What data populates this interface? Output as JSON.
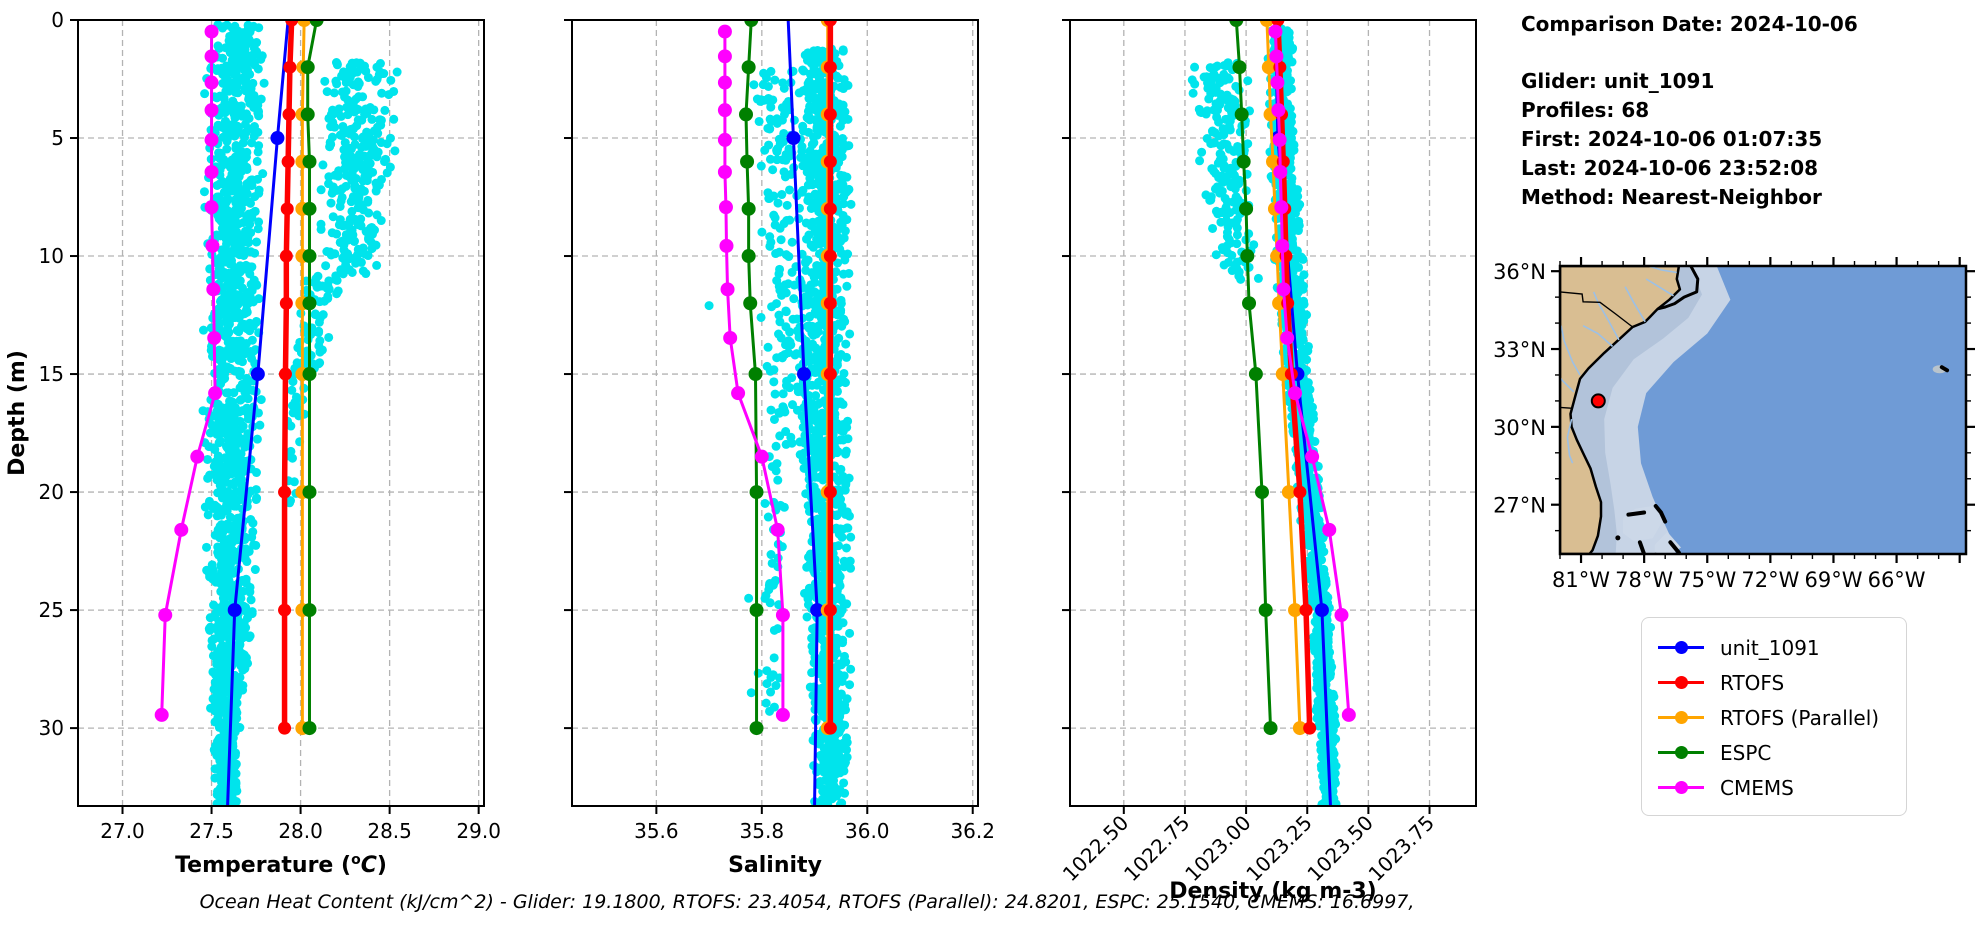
{
  "info_panel": {
    "comparison_date": "Comparison Date: 2024-10-06",
    "glider": "Glider: unit_1091",
    "profiles": "Profiles: 68",
    "first": "First: 2024-10-06 01:07:35",
    "last": "Last: 2024-10-06 23:52:08",
    "method": "Method: Nearest-Neighbor"
  },
  "footer": {
    "ocean_heat_content": "Ocean Heat Content (kJ/cm^2) - Glider: 19.1800,  RTOFS: 23.4054,  RTOFS (Parallel): 24.8201,  ESPC: 25.1540,  CMEMS: 16.6997,"
  },
  "legend": {
    "items": [
      {
        "label": "unit_1091",
        "color": "#0000ff"
      },
      {
        "label": "RTOFS",
        "color": "#ff0000"
      },
      {
        "label": "RTOFS (Parallel)",
        "color": "#ffa500"
      },
      {
        "label": "ESPC",
        "color": "#008000"
      },
      {
        "label": "CMEMS",
        "color": "#ff00ff"
      }
    ]
  },
  "chart_data": [
    {
      "type": "scatter",
      "xlabel": "Temperature (oC)",
      "xlabel_parts": [
        {
          "t": "Temperature ("
        },
        {
          "t": "o",
          "sup": true
        },
        {
          "t": "C",
          "italic": true
        },
        {
          "t": ")"
        }
      ],
      "ylabel": "Depth (m)",
      "xlim": [
        26.75,
        29.03
      ],
      "ylim": [
        0,
        33.3
      ],
      "xticks": [
        27.0,
        27.5,
        28.0,
        28.5,
        29.0
      ],
      "xtick_decimals": 1,
      "rotate_xticks": false,
      "yticks": [
        0,
        5,
        10,
        15,
        20,
        25,
        30
      ],
      "grid": true,
      "series": [
        {
          "name": "unit_1091",
          "color": "#0000ff",
          "line_width": 3,
          "marker_radius": 7,
          "depths": [
            0,
            5,
            15,
            25,
            33.3
          ],
          "values": [
            27.93,
            27.87,
            27.76,
            27.63,
            27.59
          ],
          "marker_depths": [
            5,
            15,
            25
          ]
        },
        {
          "name": "RTOFS",
          "color": "#ff0000",
          "line_width": 5.5,
          "marker_radius": 6.5,
          "depths": [
            0,
            2,
            4,
            6,
            8,
            10,
            12,
            15,
            20,
            25,
            30
          ],
          "values": [
            27.95,
            27.94,
            27.935,
            27.93,
            27.925,
            27.92,
            27.92,
            27.915,
            27.91,
            27.91,
            27.91
          ]
        },
        {
          "name": "RTOFS (Parallel)",
          "color": "#ffa500",
          "line_width": 3,
          "marker_radius": 7,
          "depths": [
            0,
            2,
            4,
            6,
            8,
            10,
            12,
            15,
            20,
            25,
            30
          ],
          "values": [
            28.02,
            28.015,
            28.01,
            28.01,
            28.01,
            28.01,
            28.01,
            28.01,
            28.01,
            28.01,
            28.01
          ]
        },
        {
          "name": "ESPC",
          "color": "#008000",
          "line_width": 3,
          "marker_radius": 7,
          "depths": [
            0,
            2,
            4,
            6,
            8,
            10,
            12,
            15,
            20,
            25,
            30
          ],
          "values": [
            28.09,
            28.04,
            28.04,
            28.05,
            28.05,
            28.05,
            28.05,
            28.05,
            28.05,
            28.05,
            28.05
          ]
        },
        {
          "name": "CMEMS",
          "color": "#ff00ff",
          "line_width": 3,
          "marker_radius": 7,
          "depths": [
            0.49,
            1.54,
            2.65,
            3.82,
            5.08,
            6.44,
            7.93,
            9.57,
            11.41,
            13.47,
            15.81,
            18.5,
            21.6,
            25.21,
            29.44
          ],
          "values": [
            27.5,
            27.5,
            27.5,
            27.5,
            27.5,
            27.5,
            27.5,
            27.505,
            27.51,
            27.515,
            27.52,
            27.42,
            27.33,
            27.24,
            27.22
          ]
        }
      ],
      "scatter": {
        "color": "#00e4ec",
        "bands": [
          {
            "seed": 11,
            "n": 1500,
            "dot_r": 4.5,
            "d_range": [
              0.2,
              33.3
            ],
            "keys": [
              [
                0,
                27.66,
                0.14
              ],
              [
                3,
                27.63,
                0.18
              ],
              [
                15,
                27.62,
                0.17
              ],
              [
                22,
                27.61,
                0.16
              ],
              [
                27,
                27.6,
                0.12
              ],
              [
                31,
                27.58,
                0.08
              ],
              [
                33.3,
                27.58,
                0.06
              ]
            ]
          },
          {
            "seed": 22,
            "n": 300,
            "dot_r": 4.5,
            "d_range": [
              1.8,
              10.8
            ],
            "keys": [
              [
                1.8,
                28.33,
                0.22
              ],
              [
                6,
                28.32,
                0.22
              ],
              [
                10.8,
                28.27,
                0.18
              ]
            ]
          },
          {
            "seed": 33,
            "n": 70,
            "dot_r": 4.5,
            "d_range": [
              10.8,
              15
            ],
            "keys": [
              [
                10.8,
                28.15,
                0.14
              ],
              [
                15,
                28.03,
                0.1
              ]
            ]
          },
          {
            "seed": 44,
            "n": 28,
            "dot_r": 4.5,
            "d_range": [
              15,
              20.5
            ],
            "keys": [
              [
                15,
                27.98,
                0.07
              ],
              [
                20.5,
                27.94,
                0.05
              ]
            ]
          }
        ],
        "outliers": []
      }
    },
    {
      "type": "scatter",
      "xlabel": "Salinity",
      "ylabel": "Depth (m)",
      "xlim": [
        35.44,
        36.21
      ],
      "ylim": [
        0,
        33.3
      ],
      "xticks": [
        35.6,
        35.8,
        36.0,
        36.2
      ],
      "xtick_decimals": 1,
      "rotate_xticks": false,
      "yticks": [
        0,
        5,
        10,
        15,
        20,
        25,
        30
      ],
      "grid": true,
      "series": [
        {
          "name": "unit_1091",
          "color": "#0000ff",
          "line_width": 3,
          "marker_radius": 7,
          "depths": [
            0,
            5,
            15,
            25,
            33.3
          ],
          "values": [
            35.85,
            35.86,
            35.88,
            35.905,
            35.9
          ],
          "marker_depths": [
            5,
            15,
            25
          ]
        },
        {
          "name": "RTOFS",
          "color": "#ff0000",
          "line_width": 5.5,
          "marker_radius": 6.5,
          "depths": [
            0,
            2,
            4,
            6,
            8,
            10,
            12,
            15,
            20,
            25,
            30
          ],
          "values": [
            35.93,
            35.93,
            35.93,
            35.93,
            35.93,
            35.93,
            35.93,
            35.93,
            35.93,
            35.93,
            35.93
          ]
        },
        {
          "name": "RTOFS (Parallel)",
          "color": "#ffa500",
          "line_width": 3,
          "marker_radius": 7,
          "depths": [
            0,
            2,
            4,
            6,
            8,
            10,
            12,
            15,
            20,
            25,
            30
          ],
          "values": [
            35.925,
            35.925,
            35.925,
            35.925,
            35.925,
            35.925,
            35.925,
            35.925,
            35.925,
            35.925,
            35.925
          ]
        },
        {
          "name": "ESPC",
          "color": "#008000",
          "line_width": 3,
          "marker_radius": 7,
          "depths": [
            0,
            2,
            4,
            6,
            8,
            10,
            12,
            15,
            20,
            25,
            30
          ],
          "values": [
            35.78,
            35.775,
            35.77,
            35.772,
            35.775,
            35.775,
            35.778,
            35.788,
            35.79,
            35.79,
            35.79
          ]
        },
        {
          "name": "CMEMS",
          "color": "#ff00ff",
          "line_width": 3,
          "marker_radius": 7,
          "depths": [
            0.49,
            1.54,
            2.65,
            3.82,
            5.08,
            6.44,
            7.93,
            9.57,
            11.41,
            13.47,
            15.81,
            18.5,
            21.6,
            25.21,
            29.44
          ],
          "values": [
            35.73,
            35.73,
            35.73,
            35.73,
            35.73,
            35.73,
            35.732,
            35.733,
            35.735,
            35.74,
            35.755,
            35.8,
            35.83,
            35.84,
            35.84
          ]
        }
      ],
      "scatter": {
        "color": "#00e4ec",
        "bands": [
          {
            "seed": 55,
            "n": 1400,
            "dot_r": 4.5,
            "d_range": [
              1.2,
              33.3
            ],
            "keys": [
              [
                1.2,
                35.92,
                0.045
              ],
              [
                8,
                35.92,
                0.05
              ],
              [
                15,
                35.915,
                0.055
              ],
              [
                20,
                35.92,
                0.05
              ],
              [
                25,
                35.925,
                0.045
              ],
              [
                30,
                35.93,
                0.04
              ],
              [
                33.3,
                35.93,
                0.035
              ]
            ]
          },
          {
            "seed": 66,
            "n": 170,
            "dot_r": 4.5,
            "d_range": [
              2,
              18
            ],
            "keys": [
              [
                2,
                35.83,
                0.05
              ],
              [
                10,
                35.84,
                0.05
              ],
              [
                18,
                35.85,
                0.04
              ]
            ]
          },
          {
            "seed": 77,
            "n": 45,
            "dot_r": 4.5,
            "d_range": [
              18,
              29.5
            ],
            "keys": [
              [
                18,
                35.82,
                0.035
              ],
              [
                29.5,
                35.815,
                0.025
              ]
            ]
          }
        ],
        "outliers": [
          [
            35.7,
            12.1
          ],
          [
            35.775,
            24.5
          ],
          [
            35.78,
            28.5
          ]
        ]
      }
    },
    {
      "type": "scatter",
      "xlabel": "Density (kg m-3)",
      "ylabel": "Depth (m)",
      "xlim": [
        1022.28,
        1023.94
      ],
      "ylim": [
        0,
        33.3
      ],
      "xticks": [
        1022.5,
        1022.75,
        1023.0,
        1023.25,
        1023.5,
        1023.75
      ],
      "xtick_decimals": 2,
      "rotate_xticks": true,
      "yticks": [
        0,
        5,
        10,
        15,
        20,
        25,
        30
      ],
      "grid": true,
      "series": [
        {
          "name": "unit_1091",
          "color": "#0000ff",
          "line_width": 3,
          "marker_radius": 7,
          "depths": [
            0,
            5,
            15,
            25,
            33.3
          ],
          "values": [
            1023.12,
            1023.13,
            1023.21,
            1023.31,
            1023.345
          ],
          "marker_depths": [
            5,
            15,
            25
          ]
        },
        {
          "name": "RTOFS",
          "color": "#ff0000",
          "line_width": 5.5,
          "marker_radius": 6.5,
          "depths": [
            0,
            2,
            4,
            6,
            8,
            10,
            12,
            15,
            20,
            25,
            30
          ],
          "values": [
            1023.13,
            1023.138,
            1023.145,
            1023.152,
            1023.158,
            1023.163,
            1023.17,
            1023.185,
            1023.22,
            1023.245,
            1023.26
          ]
        },
        {
          "name": "RTOFS (Parallel)",
          "color": "#ffa500",
          "line_width": 3,
          "marker_radius": 7,
          "depths": [
            0,
            2,
            4,
            6,
            8,
            10,
            12,
            15,
            20,
            25,
            30
          ],
          "values": [
            1023.085,
            1023.093,
            1023.1,
            1023.11,
            1023.118,
            1023.127,
            1023.135,
            1023.15,
            1023.175,
            1023.2,
            1023.22
          ]
        },
        {
          "name": "ESPC",
          "color": "#008000",
          "line_width": 3,
          "marker_radius": 7,
          "depths": [
            0,
            2,
            4,
            6,
            8,
            10,
            12,
            15,
            20,
            25,
            30
          ],
          "values": [
            1022.96,
            1022.973,
            1022.982,
            1022.99,
            1023.0,
            1023.005,
            1023.012,
            1023.04,
            1023.065,
            1023.08,
            1023.1
          ]
        },
        {
          "name": "CMEMS",
          "color": "#ff00ff",
          "line_width": 3,
          "marker_radius": 7,
          "depths": [
            0.49,
            1.54,
            2.65,
            3.82,
            5.08,
            6.44,
            7.93,
            9.57,
            11.41,
            13.47,
            15.81,
            18.5,
            21.6,
            25.21,
            29.44
          ],
          "values": [
            1023.12,
            1023.124,
            1023.128,
            1023.132,
            1023.137,
            1023.14,
            1023.144,
            1023.148,
            1023.153,
            1023.168,
            1023.2,
            1023.27,
            1023.34,
            1023.39,
            1023.42
          ]
        }
      ],
      "scatter": {
        "color": "#00e4ec",
        "bands": [
          {
            "seed": 88,
            "n": 1400,
            "dot_r": 4.5,
            "d_range": [
              0.3,
              33.3
            ],
            "keys": [
              [
                0.3,
                1023.14,
                0.055
              ],
              [
                5,
                1023.15,
                0.06
              ],
              [
                10,
                1023.17,
                0.065
              ],
              [
                15,
                1023.21,
                0.06
              ],
              [
                20,
                1023.26,
                0.05
              ],
              [
                25,
                1023.3,
                0.045
              ],
              [
                30,
                1023.33,
                0.04
              ],
              [
                33.3,
                1023.345,
                0.035
              ]
            ]
          },
          {
            "seed": 99,
            "n": 200,
            "dot_r": 4.5,
            "d_range": [
              1.8,
              11
            ],
            "keys": [
              [
                1.8,
                1022.89,
                0.13
              ],
              [
                7,
                1022.92,
                0.12
              ],
              [
                11,
                1022.98,
                0.09
              ]
            ]
          }
        ],
        "outliers": []
      }
    }
  ],
  "map": {
    "extent": {
      "lon_min": -82.0,
      "lon_max": -62.7,
      "lat_min": 25.1,
      "lat_max": 36.2
    },
    "xtick_labels": [
      {
        "lon": -81,
        "label": "81°W"
      },
      {
        "lon": -78,
        "label": "78°W"
      },
      {
        "lon": -75,
        "label": "75°W"
      },
      {
        "lon": -72,
        "label": "72°W"
      },
      {
        "lon": -69,
        "label": "69°W"
      },
      {
        "lon": -66,
        "label": "66°W"
      }
    ],
    "ytick_labels": [
      {
        "lat": 36,
        "label": "36°N"
      },
      {
        "lat": 33,
        "label": "33°N"
      },
      {
        "lat": 30,
        "label": "30°N"
      },
      {
        "lat": 27,
        "label": "27°N"
      }
    ],
    "glider_location": {
      "lon": -80.18,
      "lat": 31.0,
      "marker_color": "#ff0000",
      "marker_edge": "#000000"
    },
    "colors": {
      "land": "#d9be92",
      "ocean": "#6f9bd6",
      "shelf_inner": "#b2c3da",
      "shelf_outer": "#c7d4e6",
      "banks": "#ccd8e8",
      "river": "#9cc0e6",
      "coast": "#000000"
    }
  },
  "style": {
    "grid_color": "#b3b3b3",
    "frame_color": "#000000"
  }
}
